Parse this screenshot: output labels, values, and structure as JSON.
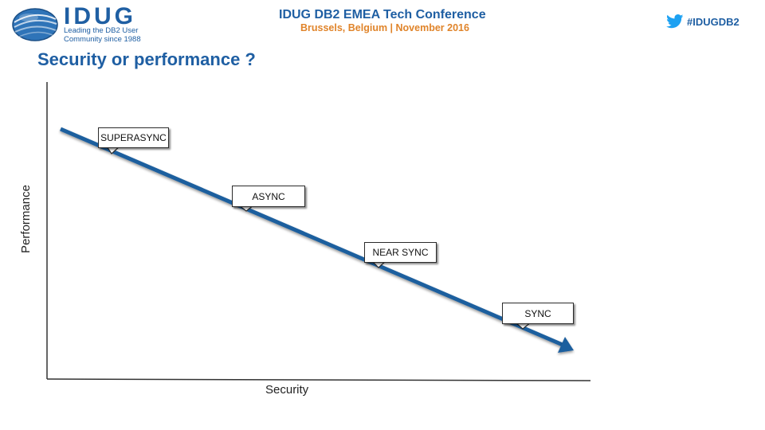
{
  "header": {
    "logo_text": "IDUG",
    "logo_tagline_line1": "Leading the DB2 User",
    "logo_tagline_line2": "Community since 1988",
    "conference_title": "IDUG DB2 EMEA Tech Conference",
    "conference_subtitle": "Brussels, Belgium  |  November 2016",
    "hashtag": "#IDUGDB2"
  },
  "slide": {
    "title": "Security or performance ?"
  },
  "diagram": {
    "y_axis_label": "Performance",
    "x_axis_label": "Security",
    "callouts": [
      "SUPERASYNC",
      "ASYNC",
      "NEAR SYNC",
      "SYNC"
    ]
  },
  "colors": {
    "brand_blue": "#1f5fa3",
    "accent_orange": "#e0842a",
    "arrow_blue": "#1f5f9e",
    "twitter_blue": "#1da1f2"
  }
}
